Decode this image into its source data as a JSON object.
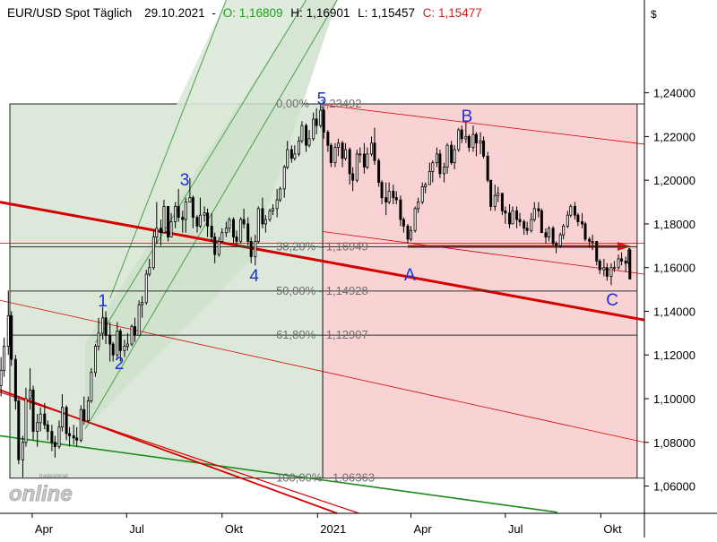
{
  "chart_data": {
    "type": "candlestick",
    "title": "EUR/USD Spot Täglich",
    "date": "29.10.2021",
    "quote": {
      "open_label": "O:",
      "open": "1,16809",
      "high_label": "H:",
      "high": "1,16901",
      "low_label": "L:",
      "low": "1,15457",
      "close_label": "C:",
      "close": "1,15477"
    },
    "currency_symbol": "$",
    "x_ticks": [
      "Apr",
      "Jul",
      "Okt",
      "2021",
      "Apr",
      "Jul",
      "Okt"
    ],
    "x_tick_dates": [
      "2020-04-01",
      "2020-07-01",
      "2020-10-01",
      "2021-01-01",
      "2021-04-01",
      "2021-07-01",
      "2021-10-01"
    ],
    "x_range": [
      "2020-03-01",
      "2021-11-12"
    ],
    "y_ticks": [
      "1,24000",
      "1,22000",
      "1,20000",
      "1,18000",
      "1,16000",
      "1,14000",
      "1,12000",
      "1,10000",
      "1,08000",
      "1,06000"
    ],
    "y_tick_values": [
      1.24,
      1.22,
      1.2,
      1.18,
      1.16,
      1.14,
      1.12,
      1.1,
      1.08,
      1.06
    ],
    "ylim": [
      1.0475,
      1.2825
    ],
    "fibonacci": {
      "range_start_date": "2020-03-01",
      "range_split_date": "2021-01-06",
      "range_end_date": "2021-11-05",
      "levels": [
        {
          "label": "0,00% - 1,23492",
          "value": 1.23492
        },
        {
          "label": "38,20% - 1,16949",
          "value": 1.16949
        },
        {
          "label": "50,00% - 1,14928",
          "value": 1.14928
        },
        {
          "label": "61,80% - 1,12907",
          "value": 1.12907
        },
        {
          "label": "100,00% - 1,06363",
          "value": 1.06363
        }
      ]
    },
    "wave_labels": [
      {
        "label": "1",
        "date": "2020-06-08",
        "value": 1.1452
      },
      {
        "label": "2",
        "date": "2020-06-24",
        "value": 1.1165
      },
      {
        "label": "3",
        "date": "2020-08-26",
        "value": 1.2005
      },
      {
        "label": "4",
        "date": "2020-11-01",
        "value": 1.1565
      },
      {
        "label": "5",
        "date": "2021-01-05",
        "value": 1.2375
      },
      {
        "label": "A",
        "date": "2021-03-31",
        "value": 1.157
      },
      {
        "label": "B",
        "date": "2021-05-25",
        "value": 1.2295
      },
      {
        "label": "C",
        "date": "2021-10-12",
        "value": 1.1455
      }
    ],
    "ohlc": [
      [
        "2020-03-02",
        1.106,
        1.119,
        1.101,
        1.113
      ],
      [
        "2020-03-05",
        1.113,
        1.128,
        1.11,
        1.124
      ],
      [
        "2020-03-09",
        1.124,
        1.1495,
        1.12,
        1.138
      ],
      [
        "2020-03-12",
        1.138,
        1.14,
        1.115,
        1.118
      ],
      [
        "2020-03-16",
        1.118,
        1.12,
        1.095,
        1.099
      ],
      [
        "2020-03-19",
        1.099,
        1.1,
        1.07,
        1.072
      ],
      [
        "2020-03-23",
        1.072,
        1.083,
        1.064,
        1.08
      ],
      [
        "2020-03-26",
        1.08,
        1.105,
        1.078,
        1.1
      ],
      [
        "2020-03-30",
        1.1,
        1.114,
        1.095,
        1.104
      ],
      [
        "2020-04-02",
        1.104,
        1.106,
        1.081,
        1.085
      ],
      [
        "2020-04-06",
        1.085,
        1.093,
        1.078,
        1.089
      ],
      [
        "2020-04-09",
        1.089,
        1.096,
        1.085,
        1.093
      ],
      [
        "2020-04-13",
        1.093,
        1.098,
        1.086,
        1.088
      ],
      [
        "2020-04-16",
        1.088,
        1.09,
        1.081,
        1.085
      ],
      [
        "2020-04-20",
        1.085,
        1.088,
        1.076,
        1.08
      ],
      [
        "2020-04-23",
        1.08,
        1.083,
        1.073,
        1.078
      ],
      [
        "2020-04-27",
        1.078,
        1.09,
        1.077,
        1.087
      ],
      [
        "2020-04-30",
        1.087,
        1.102,
        1.085,
        1.096
      ],
      [
        "2020-05-04",
        1.096,
        1.097,
        1.081,
        1.084
      ],
      [
        "2020-05-07",
        1.084,
        1.087,
        1.078,
        1.083
      ],
      [
        "2020-05-11",
        1.083,
        1.088,
        1.079,
        1.082
      ],
      [
        "2020-05-14",
        1.082,
        1.087,
        1.078,
        1.081
      ],
      [
        "2020-05-18",
        1.081,
        1.097,
        1.08,
        1.095
      ],
      [
        "2020-05-21",
        1.095,
        1.101,
        1.088,
        1.09
      ],
      [
        "2020-05-25",
        1.09,
        1.101,
        1.089,
        1.099
      ],
      [
        "2020-05-28",
        1.099,
        1.114,
        1.098,
        1.112
      ],
      [
        "2020-06-01",
        1.112,
        1.125,
        1.11,
        1.124
      ],
      [
        "2020-06-04",
        1.124,
        1.137,
        1.122,
        1.13
      ],
      [
        "2020-06-08",
        1.13,
        1.142,
        1.127,
        1.137
      ],
      [
        "2020-06-11",
        1.137,
        1.14,
        1.125,
        1.129
      ],
      [
        "2020-06-15",
        1.129,
        1.135,
        1.117,
        1.125
      ],
      [
        "2020-06-18",
        1.125,
        1.126,
        1.117,
        1.12
      ],
      [
        "2020-06-22",
        1.12,
        1.135,
        1.118,
        1.131
      ],
      [
        "2020-06-25",
        1.131,
        1.132,
        1.117,
        1.122
      ],
      [
        "2020-06-29",
        1.122,
        1.127,
        1.119,
        1.124
      ],
      [
        "2020-07-02",
        1.124,
        1.13,
        1.122,
        1.125
      ],
      [
        "2020-07-06",
        1.125,
        1.134,
        1.124,
        1.133
      ],
      [
        "2020-07-09",
        1.133,
        1.137,
        1.126,
        1.129
      ],
      [
        "2020-07-13",
        1.129,
        1.145,
        1.129,
        1.143
      ],
      [
        "2020-07-16",
        1.143,
        1.147,
        1.137,
        1.144
      ],
      [
        "2020-07-20",
        1.144,
        1.159,
        1.143,
        1.157
      ],
      [
        "2020-07-23",
        1.157,
        1.164,
        1.156,
        1.16
      ],
      [
        "2020-07-27",
        1.16,
        1.177,
        1.159,
        1.174
      ],
      [
        "2020-07-30",
        1.174,
        1.19,
        1.171,
        1.178
      ],
      [
        "2020-08-03",
        1.178,
        1.182,
        1.17,
        1.176
      ],
      [
        "2020-08-06",
        1.176,
        1.191,
        1.176,
        1.188
      ],
      [
        "2020-08-10",
        1.188,
        1.188,
        1.172,
        1.174
      ],
      [
        "2020-08-13",
        1.174,
        1.185,
        1.174,
        1.181
      ],
      [
        "2020-08-17",
        1.181,
        1.19,
        1.178,
        1.188
      ],
      [
        "2020-08-20",
        1.188,
        1.196,
        1.181,
        1.183
      ],
      [
        "2020-08-24",
        1.183,
        1.186,
        1.176,
        1.182
      ],
      [
        "2020-08-27",
        1.182,
        1.192,
        1.176,
        1.19
      ],
      [
        "2020-08-31",
        1.19,
        1.201,
        1.19,
        1.192
      ],
      [
        "2020-09-03",
        1.192,
        1.193,
        1.178,
        1.183
      ],
      [
        "2020-09-07",
        1.183,
        1.184,
        1.176,
        1.179
      ],
      [
        "2020-09-10",
        1.179,
        1.192,
        1.178,
        1.184
      ],
      [
        "2020-09-14",
        1.184,
        1.188,
        1.181,
        1.185
      ],
      [
        "2020-09-17",
        1.185,
        1.187,
        1.174,
        1.179
      ],
      [
        "2020-09-21",
        1.179,
        1.185,
        1.172,
        1.174
      ],
      [
        "2020-09-24",
        1.174,
        1.176,
        1.162,
        1.166
      ],
      [
        "2020-09-28",
        1.166,
        1.174,
        1.165,
        1.172
      ],
      [
        "2020-10-01",
        1.172,
        1.178,
        1.171,
        1.176
      ],
      [
        "2020-10-05",
        1.176,
        1.181,
        1.174,
        1.178
      ],
      [
        "2020-10-08",
        1.178,
        1.183,
        1.176,
        1.182
      ],
      [
        "2020-10-12",
        1.182,
        1.183,
        1.171,
        1.174
      ],
      [
        "2020-10-15",
        1.174,
        1.177,
        1.17,
        1.172
      ],
      [
        "2020-10-19",
        1.172,
        1.183,
        1.171,
        1.182
      ],
      [
        "2020-10-22",
        1.182,
        1.187,
        1.178,
        1.18
      ],
      [
        "2020-10-26",
        1.18,
        1.183,
        1.17,
        1.172
      ],
      [
        "2020-10-29",
        1.172,
        1.174,
        1.162,
        1.165
      ],
      [
        "2020-11-02",
        1.165,
        1.175,
        1.161,
        1.172
      ],
      [
        "2020-11-05",
        1.172,
        1.188,
        1.171,
        1.187
      ],
      [
        "2020-11-09",
        1.187,
        1.192,
        1.178,
        1.18
      ],
      [
        "2020-11-12",
        1.18,
        1.184,
        1.176,
        1.182
      ],
      [
        "2020-11-16",
        1.182,
        1.187,
        1.181,
        1.186
      ],
      [
        "2020-11-19",
        1.186,
        1.189,
        1.184,
        1.187
      ],
      [
        "2020-11-23",
        1.187,
        1.196,
        1.183,
        1.191
      ],
      [
        "2020-11-26",
        1.191,
        1.197,
        1.19,
        1.196
      ],
      [
        "2020-11-30",
        1.196,
        1.207,
        1.192,
        1.206
      ],
      [
        "2020-12-03",
        1.206,
        1.218,
        1.205,
        1.214
      ],
      [
        "2020-12-07",
        1.214,
        1.216,
        1.208,
        1.21
      ],
      [
        "2020-12-10",
        1.21,
        1.216,
        1.209,
        1.212
      ],
      [
        "2020-12-14",
        1.212,
        1.22,
        1.211,
        1.218
      ],
      [
        "2020-12-17",
        1.218,
        1.227,
        1.217,
        1.225
      ],
      [
        "2020-12-21",
        1.225,
        1.226,
        1.213,
        1.216
      ],
      [
        "2020-12-24",
        1.216,
        1.223,
        1.215,
        1.219
      ],
      [
        "2020-12-28",
        1.219,
        1.231,
        1.218,
        1.228
      ],
      [
        "2020-12-31",
        1.228,
        1.233,
        1.221,
        1.225
      ],
      [
        "2021-01-04",
        1.225,
        1.2349,
        1.224,
        1.232
      ],
      [
        "2021-01-07",
        1.232,
        1.233,
        1.219,
        1.222
      ],
      [
        "2021-01-11",
        1.222,
        1.223,
        1.213,
        1.216
      ],
      [
        "2021-01-14",
        1.216,
        1.217,
        1.206,
        1.208
      ],
      [
        "2021-01-18",
        1.208,
        1.217,
        1.206,
        1.215
      ],
      [
        "2021-01-21",
        1.215,
        1.219,
        1.211,
        1.217
      ],
      [
        "2021-01-25",
        1.217,
        1.218,
        1.206,
        1.21
      ],
      [
        "2021-01-28",
        1.21,
        1.217,
        1.209,
        1.214
      ],
      [
        "2021-02-01",
        1.214,
        1.215,
        1.198,
        1.203
      ],
      [
        "2021-02-04",
        1.203,
        1.206,
        1.195,
        1.2
      ],
      [
        "2021-02-08",
        1.2,
        1.214,
        1.199,
        1.212
      ],
      [
        "2021-02-11",
        1.212,
        1.215,
        1.208,
        1.212
      ],
      [
        "2021-02-15",
        1.212,
        1.217,
        1.203,
        1.206
      ],
      [
        "2021-02-18",
        1.206,
        1.215,
        1.205,
        1.212
      ],
      [
        "2021-02-22",
        1.212,
        1.22,
        1.211,
        1.217
      ],
      [
        "2021-02-25",
        1.217,
        1.224,
        1.207,
        1.209
      ],
      [
        "2021-03-01",
        1.209,
        1.21,
        1.197,
        1.199
      ],
      [
        "2021-03-04",
        1.199,
        1.2,
        1.189,
        1.192
      ],
      [
        "2021-03-08",
        1.192,
        1.199,
        1.184,
        1.19
      ],
      [
        "2021-03-11",
        1.19,
        1.199,
        1.189,
        1.195
      ],
      [
        "2021-03-15",
        1.195,
        1.198,
        1.189,
        1.192
      ],
      [
        "2021-03-18",
        1.192,
        1.195,
        1.189,
        1.191
      ],
      [
        "2021-03-22",
        1.191,
        1.193,
        1.179,
        1.182
      ],
      [
        "2021-03-25",
        1.182,
        1.183,
        1.176,
        1.179
      ],
      [
        "2021-03-29",
        1.179,
        1.18,
        1.171,
        1.173
      ],
      [
        "2021-04-01",
        1.173,
        1.179,
        1.172,
        1.177
      ],
      [
        "2021-04-05",
        1.177,
        1.188,
        1.176,
        1.187
      ],
      [
        "2021-04-08",
        1.187,
        1.192,
        1.185,
        1.19
      ],
      [
        "2021-04-12",
        1.19,
        1.199,
        1.189,
        1.197
      ],
      [
        "2021-04-15",
        1.197,
        1.199,
        1.194,
        1.198
      ],
      [
        "2021-04-19",
        1.198,
        1.208,
        1.198,
        1.204
      ],
      [
        "2021-04-22",
        1.204,
        1.209,
        1.199,
        1.208
      ],
      [
        "2021-04-26",
        1.208,
        1.215,
        1.206,
        1.212
      ],
      [
        "2021-04-29",
        1.212,
        1.214,
        1.201,
        1.203
      ],
      [
        "2021-05-03",
        1.203,
        1.208,
        1.199,
        1.206
      ],
      [
        "2021-05-06",
        1.206,
        1.217,
        1.203,
        1.216
      ],
      [
        "2021-05-10",
        1.216,
        1.218,
        1.207,
        1.208
      ],
      [
        "2021-05-13",
        1.208,
        1.216,
        1.205,
        1.214
      ],
      [
        "2021-05-17",
        1.214,
        1.224,
        1.213,
        1.223
      ],
      [
        "2021-05-20",
        1.223,
        1.225,
        1.217,
        1.219
      ],
      [
        "2021-05-24",
        1.219,
        1.2266,
        1.217,
        1.22
      ],
      [
        "2021-05-27",
        1.22,
        1.221,
        1.213,
        1.215
      ],
      [
        "2021-05-31",
        1.215,
        1.225,
        1.213,
        1.221
      ],
      [
        "2021-06-03",
        1.221,
        1.222,
        1.211,
        1.217
      ],
      [
        "2021-06-07",
        1.217,
        1.222,
        1.212,
        1.218
      ],
      [
        "2021-06-10",
        1.218,
        1.22,
        1.21,
        1.211
      ],
      [
        "2021-06-14",
        1.211,
        1.213,
        1.199,
        1.2
      ],
      [
        "2021-06-17",
        1.2,
        1.2,
        1.186,
        1.188
      ],
      [
        "2021-06-21",
        1.188,
        1.198,
        1.186,
        1.193
      ],
      [
        "2021-06-24",
        1.193,
        1.197,
        1.19,
        1.194
      ],
      [
        "2021-06-28",
        1.194,
        1.194,
        1.184,
        1.186
      ],
      [
        "2021-07-01",
        1.186,
        1.188,
        1.18,
        1.185
      ],
      [
        "2021-07-05",
        1.185,
        1.189,
        1.178,
        1.18
      ],
      [
        "2021-07-08",
        1.18,
        1.188,
        1.18,
        1.186
      ],
      [
        "2021-07-12",
        1.186,
        1.188,
        1.178,
        1.182
      ],
      [
        "2021-07-15",
        1.182,
        1.185,
        1.179,
        1.181
      ],
      [
        "2021-07-19",
        1.181,
        1.182,
        1.175,
        1.178
      ],
      [
        "2021-07-22",
        1.178,
        1.181,
        1.175,
        1.177
      ],
      [
        "2021-07-26",
        1.177,
        1.185,
        1.176,
        1.182
      ],
      [
        "2021-07-29",
        1.182,
        1.19,
        1.181,
        1.187
      ],
      [
        "2021-08-02",
        1.187,
        1.19,
        1.183,
        1.186
      ],
      [
        "2021-08-05",
        1.186,
        1.187,
        1.176,
        1.176
      ],
      [
        "2021-08-09",
        1.176,
        1.178,
        1.171,
        1.174
      ],
      [
        "2021-08-12",
        1.174,
        1.179,
        1.172,
        1.178
      ],
      [
        "2021-08-16",
        1.178,
        1.179,
        1.17,
        1.171
      ],
      [
        "2021-08-19",
        1.171,
        1.172,
        1.1665,
        1.17
      ],
      [
        "2021-08-23",
        1.17,
        1.176,
        1.169,
        1.175
      ],
      [
        "2021-08-26",
        1.175,
        1.18,
        1.173,
        1.179
      ],
      [
        "2021-08-30",
        1.179,
        1.186,
        1.178,
        1.184
      ],
      [
        "2021-09-02",
        1.184,
        1.189,
        1.183,
        1.188
      ],
      [
        "2021-09-06",
        1.188,
        1.19,
        1.182,
        1.184
      ],
      [
        "2021-09-09",
        1.184,
        1.185,
        1.179,
        1.181
      ],
      [
        "2021-09-13",
        1.181,
        1.185,
        1.178,
        1.18
      ],
      [
        "2021-09-16",
        1.18,
        1.181,
        1.172,
        1.173
      ],
      [
        "2021-09-20",
        1.173,
        1.174,
        1.169,
        1.172
      ],
      [
        "2021-09-23",
        1.172,
        1.175,
        1.168,
        1.172
      ],
      [
        "2021-09-27",
        1.172,
        1.172,
        1.161,
        1.163
      ],
      [
        "2021-09-30",
        1.163,
        1.164,
        1.157,
        1.159
      ],
      [
        "2021-10-04",
        1.159,
        1.164,
        1.156,
        1.16
      ],
      [
        "2021-10-07",
        1.16,
        1.162,
        1.154,
        1.156
      ],
      [
        "2021-10-11",
        1.156,
        1.162,
        1.152,
        1.16
      ],
      [
        "2021-10-14",
        1.16,
        1.163,
        1.158,
        1.16
      ],
      [
        "2021-10-18",
        1.16,
        1.166,
        1.159,
        1.164
      ],
      [
        "2021-10-21",
        1.164,
        1.167,
        1.161,
        1.163
      ],
      [
        "2021-10-25",
        1.163,
        1.165,
        1.158,
        1.162
      ],
      [
        "2021-10-28",
        1.162,
        1.169,
        1.16,
        1.168
      ],
      [
        "2021-10-29",
        1.1681,
        1.169,
        1.1546,
        1.1548
      ]
    ]
  },
  "watermark": {
    "small": "tradesignal",
    "large": "online"
  },
  "colors": {
    "up_color": "#ffffff",
    "down_color": "#000000",
    "green_zone": "#dce9da",
    "red_zone": "#f9d3d3",
    "label_blue": "#1a2fd6",
    "quote_green": "#19a319",
    "quote_red": "#d42020",
    "channel_green": "#4aa04a",
    "channel_red": "#d40000",
    "text_gray": "#6e6e6e"
  }
}
